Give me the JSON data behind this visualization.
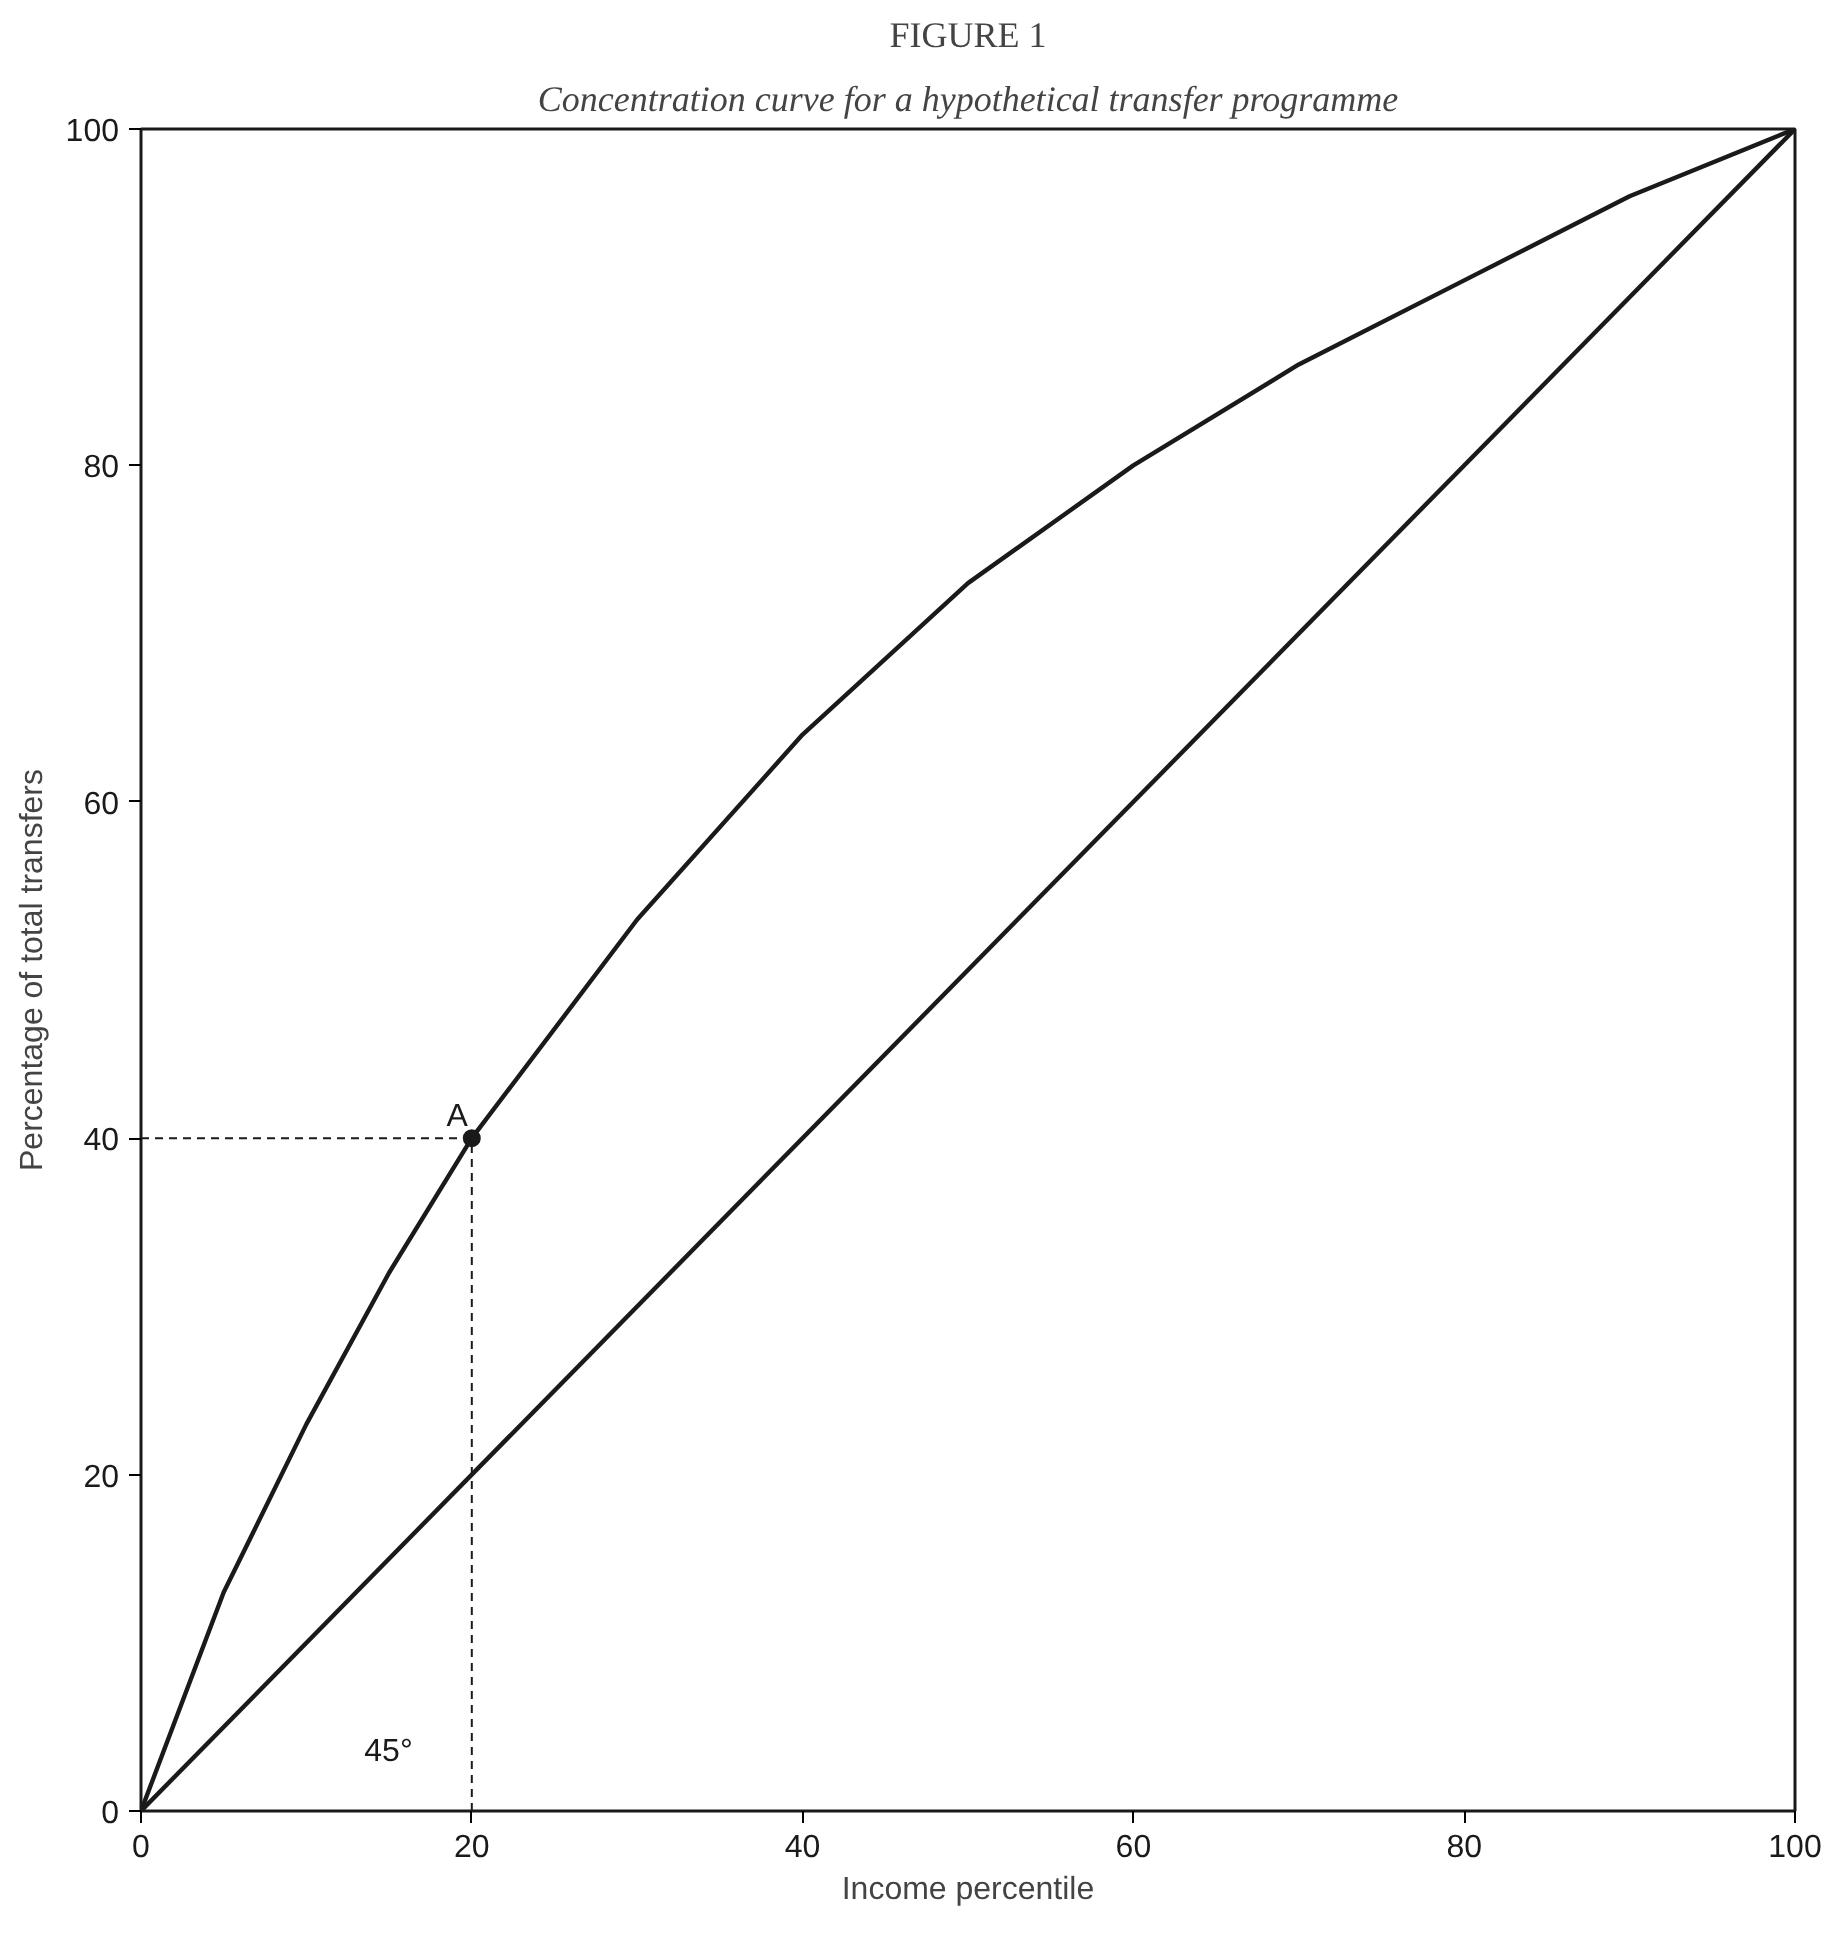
{
  "chart_data": {
    "type": "line",
    "title": "FIGURE 1",
    "subtitle": "Concentration curve for a hypothetical transfer programme",
    "xlabel": "Income percentile",
    "ylabel": "Percentage of total transfers",
    "xlim": [
      0,
      100
    ],
    "ylim": [
      0,
      100
    ],
    "xticks": [
      0,
      20,
      40,
      60,
      80,
      100
    ],
    "yticks": [
      0,
      20,
      40,
      60,
      80,
      100
    ],
    "grid": false,
    "series": [
      {
        "color": "#1a1a1a",
        "x": [
          0,
          5,
          10,
          15,
          20,
          30,
          40,
          50,
          60,
          70,
          80,
          90,
          100
        ],
        "values": [
          0,
          13,
          23,
          32,
          40,
          53,
          64,
          73,
          80,
          86,
          91,
          96,
          100
        ]
      },
      {
        "color": "#1a1a1a",
        "x": [
          0,
          100
        ],
        "values": [
          0,
          100
        ]
      },
      {
        "type": "scatter",
        "color": "#1a1a1a",
        "marker": "circle",
        "x": [
          20
        ],
        "values": [
          40
        ]
      }
    ],
    "annotations": [
      {
        "text": "A",
        "x": 20,
        "y": 40
      },
      "45°"
    ]
  }
}
